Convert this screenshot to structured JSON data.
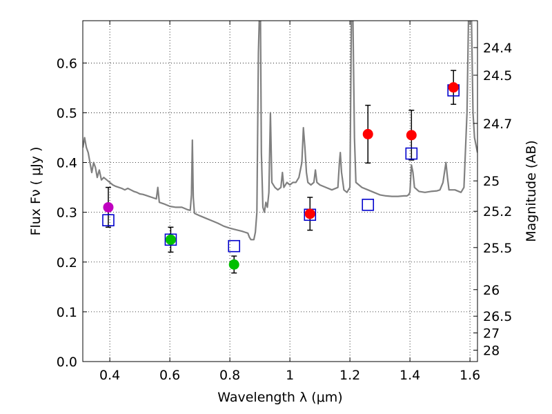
{
  "chart_data": {
    "type": "scatter",
    "title": "",
    "xlabel": "Wavelength  λ (μm)",
    "ylabel": "Flux  Fν  ( μJy )",
    "y2label": "Magnitude (AB)",
    "xlim": [
      0.31,
      1.625
    ],
    "ylim": [
      0.0,
      0.685
    ],
    "grid": true,
    "x_ticks": [
      0.4,
      0.6,
      0.8,
      1.0,
      1.2,
      1.4,
      1.6
    ],
    "x_tick_labels": [
      "0.4",
      "0.6",
      "0.8",
      "1",
      "1.2",
      "1.4",
      "1.6"
    ],
    "y_ticks": [
      0.0,
      0.1,
      0.2,
      0.3,
      0.4,
      0.5,
      0.6
    ],
    "y_tick_labels": [
      "0.0",
      "0.1",
      "0.2",
      "0.3",
      "0.4",
      "0.5",
      "0.6"
    ],
    "mag_ticks": [
      24.4,
      24.5,
      24.7,
      25,
      25.2,
      25.5,
      26,
      26.5,
      27,
      28
    ],
    "mag_tick_labels": [
      "24.4",
      "24.5",
      "24.7",
      "25",
      "25.2",
      "25.5",
      "26",
      "26.5",
      "27",
      "28"
    ],
    "colors": {
      "model": "#808080",
      "magenta": "#bf00bf",
      "green": "#00bf00",
      "red": "#ff0000",
      "square": "#0000cc",
      "errorbar": "#000000"
    },
    "series": [
      {
        "marker": "circle",
        "points": [
          {
            "x": 0.395,
            "y": 0.31,
            "err_lo": 0.04,
            "err_hi": 0.04,
            "color": "magenta"
          },
          {
            "x": 0.603,
            "y": 0.245,
            "err_lo": 0.025,
            "err_hi": 0.025,
            "color": "green"
          },
          {
            "x": 0.814,
            "y": 0.195,
            "err_lo": 0.017,
            "err_hi": 0.017,
            "color": "green"
          },
          {
            "x": 1.067,
            "y": 0.297,
            "err_lo": 0.033,
            "err_hi": 0.033,
            "color": "red"
          },
          {
            "x": 1.26,
            "y": 0.457,
            "err_lo": 0.058,
            "err_hi": 0.058,
            "color": "red"
          },
          {
            "x": 1.405,
            "y": 0.455,
            "err_lo": 0.05,
            "err_hi": 0.05,
            "color": "red"
          },
          {
            "x": 1.545,
            "y": 0.551,
            "err_lo": 0.034,
            "err_hi": 0.034,
            "color": "red"
          }
        ]
      },
      {
        "marker": "square",
        "points": [
          {
            "x": 0.395,
            "y": 0.284
          },
          {
            "x": 0.603,
            "y": 0.245
          },
          {
            "x": 0.814,
            "y": 0.232
          },
          {
            "x": 1.067,
            "y": 0.295
          },
          {
            "x": 1.26,
            "y": 0.315
          },
          {
            "x": 1.405,
            "y": 0.418
          },
          {
            "x": 1.545,
            "y": 0.545
          }
        ]
      },
      {
        "marker": "line",
        "points": [
          [
            0.31,
            0.43
          ],
          [
            0.316,
            0.45
          ],
          [
            0.322,
            0.43
          ],
          [
            0.328,
            0.42
          ],
          [
            0.334,
            0.4
          ],
          [
            0.34,
            0.38
          ],
          [
            0.346,
            0.4
          ],
          [
            0.352,
            0.39
          ],
          [
            0.358,
            0.37
          ],
          [
            0.365,
            0.385
          ],
          [
            0.372,
            0.365
          ],
          [
            0.38,
            0.37
          ],
          [
            0.39,
            0.365
          ],
          [
            0.4,
            0.36
          ],
          [
            0.41,
            0.355
          ],
          [
            0.42,
            0.352
          ],
          [
            0.43,
            0.35
          ],
          [
            0.44,
            0.348
          ],
          [
            0.45,
            0.345
          ],
          [
            0.46,
            0.348
          ],
          [
            0.47,
            0.345
          ],
          [
            0.48,
            0.342
          ],
          [
            0.49,
            0.34
          ],
          [
            0.5,
            0.337
          ],
          [
            0.51,
            0.336
          ],
          [
            0.52,
            0.334
          ],
          [
            0.53,
            0.332
          ],
          [
            0.54,
            0.33
          ],
          [
            0.55,
            0.328
          ],
          [
            0.555,
            0.327
          ],
          [
            0.56,
            0.35
          ],
          [
            0.565,
            0.32
          ],
          [
            0.58,
            0.317
          ],
          [
            0.6,
            0.312
          ],
          [
            0.62,
            0.31
          ],
          [
            0.64,
            0.31
          ],
          [
            0.66,
            0.305
          ],
          [
            0.668,
            0.304
          ],
          [
            0.672,
            0.335
          ],
          [
            0.675,
            0.445
          ],
          [
            0.678,
            0.33
          ],
          [
            0.682,
            0.298
          ],
          [
            0.7,
            0.293
          ],
          [
            0.72,
            0.288
          ],
          [
            0.74,
            0.283
          ],
          [
            0.76,
            0.278
          ],
          [
            0.78,
            0.272
          ],
          [
            0.8,
            0.268
          ],
          [
            0.82,
            0.265
          ],
          [
            0.84,
            0.262
          ],
          [
            0.85,
            0.26
          ],
          [
            0.86,
            0.258
          ],
          [
            0.865,
            0.25
          ],
          [
            0.87,
            0.245
          ],
          [
            0.88,
            0.245
          ],
          [
            0.885,
            0.26
          ],
          [
            0.89,
            0.3
          ],
          [
            0.895,
            0.62
          ],
          [
            0.898,
            0.69
          ],
          [
            0.902,
            0.69
          ],
          [
            0.905,
            0.42
          ],
          [
            0.91,
            0.31
          ],
          [
            0.915,
            0.3
          ],
          [
            0.92,
            0.32
          ],
          [
            0.925,
            0.31
          ],
          [
            0.93,
            0.34
          ],
          [
            0.935,
            0.5
          ],
          [
            0.94,
            0.36
          ],
          [
            0.95,
            0.35
          ],
          [
            0.96,
            0.345
          ],
          [
            0.97,
            0.35
          ],
          [
            0.975,
            0.38
          ],
          [
            0.98,
            0.35
          ],
          [
            0.99,
            0.36
          ],
          [
            1.0,
            0.355
          ],
          [
            1.01,
            0.36
          ],
          [
            1.02,
            0.36
          ],
          [
            1.03,
            0.37
          ],
          [
            1.04,
            0.4
          ],
          [
            1.045,
            0.47
          ],
          [
            1.05,
            0.43
          ],
          [
            1.055,
            0.38
          ],
          [
            1.06,
            0.36
          ],
          [
            1.07,
            0.355
          ],
          [
            1.08,
            0.36
          ],
          [
            1.085,
            0.385
          ],
          [
            1.09,
            0.36
          ],
          [
            1.1,
            0.355
          ],
          [
            1.12,
            0.35
          ],
          [
            1.14,
            0.345
          ],
          [
            1.16,
            0.35
          ],
          [
            1.165,
            0.4
          ],
          [
            1.168,
            0.42
          ],
          [
            1.172,
            0.38
          ],
          [
            1.18,
            0.345
          ],
          [
            1.19,
            0.34
          ],
          [
            1.2,
            0.35
          ],
          [
            1.205,
            0.69
          ],
          [
            1.21,
            0.69
          ],
          [
            1.215,
            0.45
          ],
          [
            1.22,
            0.36
          ],
          [
            1.24,
            0.35
          ],
          [
            1.26,
            0.345
          ],
          [
            1.28,
            0.34
          ],
          [
            1.3,
            0.335
          ],
          [
            1.32,
            0.333
          ],
          [
            1.34,
            0.332
          ],
          [
            1.36,
            0.332
          ],
          [
            1.38,
            0.333
          ],
          [
            1.39,
            0.333
          ],
          [
            1.395,
            0.335
          ],
          [
            1.4,
            0.34
          ],
          [
            1.405,
            0.395
          ],
          [
            1.41,
            0.38
          ],
          [
            1.415,
            0.35
          ],
          [
            1.43,
            0.342
          ],
          [
            1.45,
            0.34
          ],
          [
            1.47,
            0.342
          ],
          [
            1.49,
            0.343
          ],
          [
            1.5,
            0.345
          ],
          [
            1.51,
            0.36
          ],
          [
            1.52,
            0.4
          ],
          [
            1.525,
            0.37
          ],
          [
            1.53,
            0.345
          ],
          [
            1.55,
            0.345
          ],
          [
            1.57,
            0.34
          ],
          [
            1.58,
            0.35
          ],
          [
            1.59,
            0.5
          ],
          [
            1.595,
            0.69
          ],
          [
            1.605,
            0.69
          ],
          [
            1.61,
            0.5
          ],
          [
            1.615,
            0.45
          ],
          [
            1.625,
            0.42
          ]
        ]
      }
    ]
  }
}
